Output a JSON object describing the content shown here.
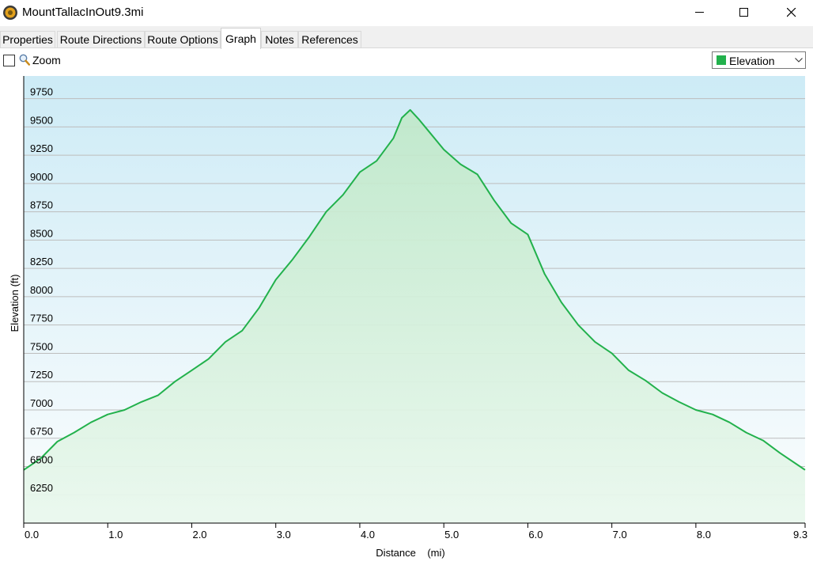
{
  "window": {
    "title": "MountTallacInOut9.3mi"
  },
  "tabs": [
    {
      "label": "Properties",
      "active": false
    },
    {
      "label": "Route Directions",
      "active": false
    },
    {
      "label": "Route Options",
      "active": false
    },
    {
      "label": "Graph",
      "active": true
    },
    {
      "label": "Notes",
      "active": false
    },
    {
      "label": "References",
      "active": false
    }
  ],
  "toolbar": {
    "zoom_label": "Zoom",
    "zoom_checked": false,
    "series_selected": "Elevation",
    "series_color": "#22b14c"
  },
  "chart_data": {
    "type": "area",
    "ylabel": "Elevation (ft)",
    "xlabel": "Distance    (mi)",
    "xlim": [
      0,
      9.3
    ],
    "ylim": [
      6000,
      9950
    ],
    "y_ticks": [
      6250,
      6500,
      6750,
      7000,
      7250,
      7500,
      7750,
      8000,
      8250,
      8500,
      8750,
      9000,
      9250,
      9500,
      9750
    ],
    "x_ticks": [
      {
        "value": 0,
        "label": "0.0"
      },
      {
        "value": 1,
        "label": "1.0"
      },
      {
        "value": 2,
        "label": "2.0"
      },
      {
        "value": 3,
        "label": "3.0"
      },
      {
        "value": 4,
        "label": "4.0"
      },
      {
        "value": 5,
        "label": "5.0"
      },
      {
        "value": 6,
        "label": "6.0"
      },
      {
        "value": 7,
        "label": "7.0"
      },
      {
        "value": 8,
        "label": "8.0"
      },
      {
        "value": 9.3,
        "label": "9.3"
      }
    ],
    "grid": true,
    "line_color": "#22b14c",
    "series": [
      {
        "x": [
          0,
          0.2,
          0.4,
          0.6,
          0.8,
          1.0,
          1.2,
          1.4,
          1.6,
          1.8,
          2.0,
          2.2,
          2.4,
          2.6,
          2.8,
          3.0,
          3.2,
          3.4,
          3.6,
          3.8,
          4.0,
          4.2,
          4.4,
          4.5,
          4.6,
          4.7,
          4.8,
          5.0,
          5.2,
          5.4,
          5.6,
          5.8,
          6.0,
          6.2,
          6.4,
          6.6,
          6.8,
          7.0,
          7.2,
          7.4,
          7.6,
          7.8,
          8.0,
          8.2,
          8.4,
          8.6,
          8.8,
          9.0,
          9.3
        ],
        "y": [
          6470,
          6570,
          6720,
          6800,
          6890,
          6960,
          7000,
          7070,
          7130,
          7250,
          7350,
          7450,
          7600,
          7700,
          7900,
          8150,
          8330,
          8530,
          8750,
          8900,
          9100,
          9200,
          9400,
          9580,
          9650,
          9570,
          9480,
          9300,
          9170,
          9080,
          8850,
          8650,
          8550,
          8200,
          7950,
          7750,
          7600,
          7500,
          7350,
          7260,
          7150,
          7070,
          7000,
          6960,
          6890,
          6800,
          6730,
          6620,
          6470
        ]
      }
    ]
  }
}
